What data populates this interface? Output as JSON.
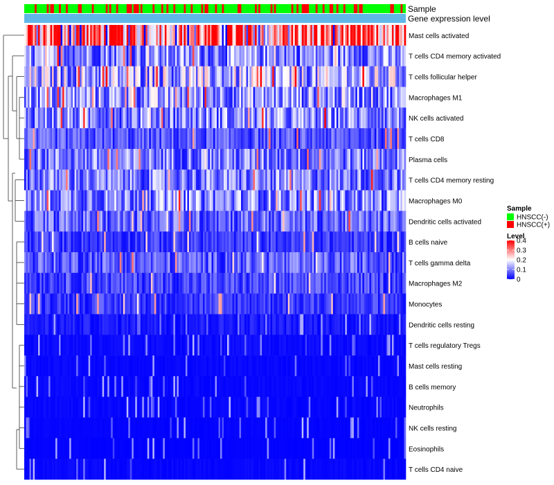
{
  "chart_data": {
    "type": "heatmap",
    "annotation_labels": [
      "Sample",
      "Gene expression level"
    ],
    "row_labels": [
      "Mast cells activated",
      "T cells CD4 memory activated",
      "T cells follicular helper",
      "Macrophages M1",
      "NK cells activated",
      "T cells CD8",
      "Plasma cells",
      "T cells CD4 memory resting",
      "Macrophages M0",
      "Dendritic cells activated",
      "B cells naive",
      "T cells gamma delta",
      "Macrophages M2",
      "Monocytes",
      "Dendritic cells resting",
      "T cells regulatory  Tregs",
      "Mast cells resting",
      "B cells memory",
      "Neutrophils",
      "NK cells resting",
      "Eosinophils",
      "T cells CD4 naive"
    ],
    "row_mean_levels": [
      0.32,
      0.12,
      0.15,
      0.13,
      0.12,
      0.07,
      0.11,
      0.11,
      0.12,
      0.09,
      0.05,
      0.08,
      0.06,
      0.05,
      0.04,
      0.015,
      0.01,
      0.01,
      0.01,
      0.005,
      0.003,
      0.01
    ],
    "n_samples": 220,
    "sample_groups": [
      "HNSCC(-)",
      "HNSCC(+)"
    ],
    "sample_group_fraction_positive": 0.3,
    "color_scale": {
      "range": [
        0,
        0.4
      ],
      "low": "#0000ff",
      "mid": "#ffffff",
      "high": "#ff0000",
      "ticks": [
        "0.4",
        "0.3",
        "0.2",
        "0.1",
        "0"
      ]
    },
    "legend": {
      "sample_title": "Sample",
      "level_title": "Level",
      "entries": [
        {
          "label": "HNSCC(-)",
          "color": "#00ff00"
        },
        {
          "label": "HNSCC(+)",
          "color": "#ff0000"
        }
      ]
    },
    "annotation_colors": {
      "gene_expression_level": "#5fb7e8"
    },
    "dendrogram": "hierarchical clustering tree on rows (left side)"
  }
}
